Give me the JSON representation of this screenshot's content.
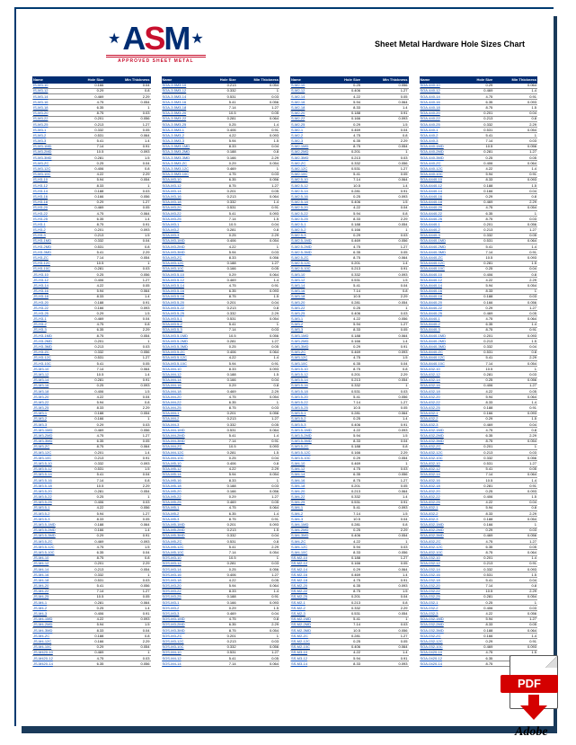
{
  "title": "Sheet Metal Hardware Hole Sizes Chart",
  "tagline": "APPROVED SHEET METAL",
  "pdf_label": "PDF",
  "adobe_label": "Adobe",
  "headers": [
    "Name",
    "Hole Size",
    "Min Thickness"
  ],
  "rows_per_column": 105,
  "colors": {
    "navy": "#002d72",
    "red": "#c8102e",
    "link": "#0645ad"
  },
  "sample_data": {
    "col1_prefixes": [
      "IS-M3-",
      "IS-H3-",
      "JS-H3-",
      "JS-M3-",
      "JS-M3.5-",
      "JS-M4-",
      "JS-M420-",
      "JS-M5-",
      "AS-M3-",
      "AS-M4-",
      "AS-M5-",
      "AS-M420-",
      "AL-M2-",
      "AL-M2.5-",
      "AL-M3-",
      "AL-M4-",
      "AL-M420-",
      "AL-M5-",
      "AS-H3-",
      "AS-440-"
    ],
    "col2_prefixes": [
      "SOA-3.5M3-",
      "SOA-M3-",
      "SOA-M3.5-",
      "SOA-M4-",
      "SOA-M5-",
      "SOS-M3-",
      "SOS-M4-",
      "SOS-M5-",
      "SOA-4.5-",
      "SO4-4.5-",
      "SO4-5.5-",
      "SO-4.5-",
      "SO-5.5-",
      "SO-6.5-",
      "SOA-632-",
      "SOA-832-",
      "SO-832-",
      "SO-632-",
      "SO-440-",
      "SOS-632-"
    ],
    "col3_prefixes": [
      "S-M2-",
      "S-M2.5-",
      "S-M3-",
      "S-M3.5-",
      "S-M4-",
      "SS-M2-",
      "SS-M3-",
      "SS-M3.5-",
      "SS-M4-",
      "SS-M5-",
      "JS-M5-",
      "JS-M6-",
      "JS-M8-",
      "SP-M3-",
      "SP-M4-",
      "SP-M5-",
      "SP-M6-",
      "S-M8-",
      "S-M10-",
      "S-632-"
    ],
    "col4_prefixes": [
      "SOA-440-",
      "SOA-6440-",
      "SOA-8440-",
      "SOA-632-",
      "SOA-832-",
      "SOA-032-",
      "SOA-0420-",
      "SOA-0520-",
      "SOA-0616-",
      "SOA-0632-",
      "SOA-0832-",
      "SO-032-",
      "SO-0420-",
      "SO-0520-",
      "SO-0616-",
      "SO-0632-",
      "SO-0832-",
      "SO-0125-",
      "SOS-440-",
      "SOS-032-"
    ],
    "hole_sizes": [
      0.166,
      0.213,
      0.25,
      0.29,
      0.332,
      0.406,
      0.469,
      0.531,
      4.22,
      4.75,
      5.41,
      5.94,
      6.35,
      7.14,
      8.33,
      8.75,
      10.5,
      0.188,
      0.201,
      0.281
    ],
    "thicknesses": [
      0.04,
      0.054,
      0.056,
      0.064,
      0.093,
      0.8,
      1,
      1.27,
      1.4,
      1.5,
      2.29,
      0.03,
      0.05,
      0.91
    ]
  }
}
